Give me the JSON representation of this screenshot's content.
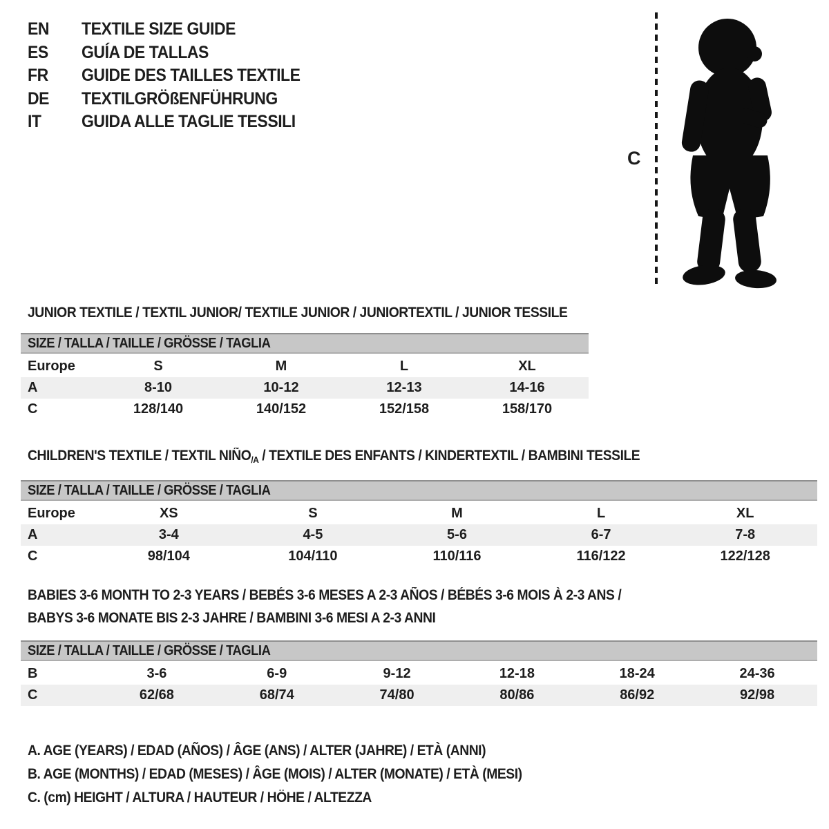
{
  "languages": [
    {
      "code": "EN",
      "label": "TEXTILE SIZE GUIDE"
    },
    {
      "code": "ES",
      "label": "GUÍA DE TALLAS"
    },
    {
      "code": "FR",
      "label": "GUIDE DES TAILLES TEXTILE"
    },
    {
      "code": "DE",
      "label": "TEXTILGRÖßENFÜHRUNG"
    },
    {
      "code": "IT",
      "label": "GUIDA ALLE TAGLIE TESSILI"
    }
  ],
  "figure": {
    "icon": "baby-silhouette-icon",
    "measure_label": "C"
  },
  "sections": [
    {
      "title_lines": [
        [
          {
            "text": "JUNIOR TEXTILE / TEXTIL JUNIOR/ TEXTILE JUNIOR / JUNIORTEXTIL / JUNIOR TESSILE",
            "sub": false
          }
        ]
      ],
      "size_header": "SIZE / TALLA / TAILLE / GRÖSSE / TAGLIA",
      "rows": [
        {
          "label": "Europe",
          "values": [
            "S",
            "M",
            "L",
            "XL"
          ]
        },
        {
          "label": "A",
          "values": [
            "8-10",
            "10-12",
            "12-13",
            "14-16"
          ]
        },
        {
          "label": "C",
          "values": [
            "128/140",
            "140/152",
            "152/158",
            "158/170"
          ]
        }
      ]
    },
    {
      "title_lines": [
        [
          {
            "text": "CHILDREN'S TEXTILE / TEXTIL NIÑO",
            "sub": false
          },
          {
            "text": "/A",
            "sub": true
          },
          {
            "text": " / TEXTILE DES ENFANTS / KINDERTEXTIL / BAMBINI TESSILE",
            "sub": false
          }
        ]
      ],
      "size_header": "SIZE / TALLA / TAILLE / GRÖSSE / TAGLIA",
      "rows": [
        {
          "label": "Europe",
          "values": [
            "XS",
            "S",
            "M",
            "L",
            "XL"
          ]
        },
        {
          "label": "A",
          "values": [
            "3-4",
            "4-5",
            "5-6",
            "6-7",
            "7-8"
          ]
        },
        {
          "label": "C",
          "values": [
            "98/104",
            "104/110",
            "110/116",
            "116/122",
            "122/128"
          ]
        }
      ]
    },
    {
      "title_lines": [
        [
          {
            "text": "BABIES 3-6 MONTH TO 2-3 YEARS / BEBÉS 3-6 MESES A 2-3 AÑOS / BÉBÉS 3-6 MOIS À 2-3 ANS /",
            "sub": false
          }
        ],
        [
          {
            "text": "BABYS 3-6 MONATE BIS 2-3 JAHRE / BAMBINI 3-6 MESI A 2-3 ANNI",
            "sub": false
          }
        ]
      ],
      "size_header": "SIZE / TALLA / TAILLE / GRÖSSE / TAGLIA",
      "rows": [
        {
          "label": "B",
          "values": [
            "3-6",
            "6-9",
            "9-12",
            "12-18",
            "18-24",
            "24-36"
          ]
        },
        {
          "label": "C",
          "values": [
            "62/68",
            "68/74",
            "74/80",
            "80/86",
            "86/92",
            "92/98"
          ]
        }
      ]
    }
  ],
  "legend": [
    "A. AGE (YEARS) / EDAD (AÑOS) / ÂGE (ANS) / ALTER (JAHRE) / ETÀ (ANNI)",
    "B. AGE (MONTHS) / EDAD (MESES) / ÂGE (MOIS) / ALTER (MONATE) / ETÀ (MESI)",
    "C. (cm) HEIGHT / ALTURA / HAUTEUR / HÖHE / ALTEZZA"
  ],
  "colors": {
    "text": "#1d1d1d",
    "size_bar_bg": "#c7c7c7",
    "row_shade": "#efefef",
    "silhouette": "#0d0d0d"
  }
}
